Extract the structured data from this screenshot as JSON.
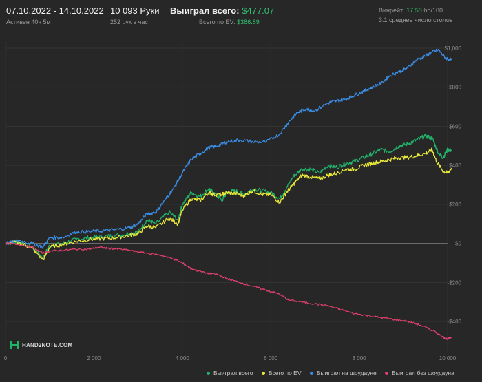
{
  "header": {
    "date_range": "07.10.2022 - 14.10.2022",
    "active_time": "Активен 40ч 5м",
    "hands": "10 093 Руки",
    "hands_per_hour": "252 рук в час",
    "won_total_label": "Выиграл всего:",
    "won_total_value": "$477.07",
    "ev_total_label": "Всего по EV:",
    "ev_total_value": "$386.89",
    "winrate_label": "Винрейт:",
    "winrate_value": "17.58",
    "winrate_unit": "бб/100",
    "avg_tables": "3.1 среднее число столов"
  },
  "logo": {
    "text": "HAND2NOTE.COM"
  },
  "colors": {
    "background": "#272727",
    "grid": "#3a3a3a",
    "zero_line": "#6a6a6a",
    "won_total": "#22b36a",
    "ev": "#e8e83a",
    "showdown": "#3b8ee6",
    "non_showdown": "#e0406e"
  },
  "chart_data": {
    "type": "line",
    "x_range": [
      0,
      10093
    ],
    "ylim": [
      -500,
      1050
    ],
    "x_ticks": [
      0,
      2000,
      4000,
      6000,
      8000,
      10000
    ],
    "x_tick_labels": [
      "0",
      "2 000",
      "4 000",
      "6 000",
      "8 000",
      "10 000"
    ],
    "y_ticks": [
      -400,
      -200,
      0,
      200,
      400,
      600,
      800,
      1000
    ],
    "y_tick_labels": [
      "-$400",
      "-$200",
      "$0",
      "$200",
      "$400",
      "$600",
      "$800",
      "$1,000"
    ],
    "grid": true,
    "legend_position": "bottom-right",
    "series": [
      {
        "name": "Выиграл всего",
        "color_key": "won_total",
        "points": [
          [
            0,
            0
          ],
          [
            300,
            10
          ],
          [
            600,
            -20
          ],
          [
            850,
            -70
          ],
          [
            1000,
            -10
          ],
          [
            1300,
            0
          ],
          [
            1600,
            20
          ],
          [
            1900,
            30
          ],
          [
            2200,
            35
          ],
          [
            2500,
            40
          ],
          [
            2800,
            50
          ],
          [
            3000,
            60
          ],
          [
            3200,
            120
          ],
          [
            3400,
            100
          ],
          [
            3700,
            160
          ],
          [
            3900,
            120
          ],
          [
            4000,
            200
          ],
          [
            4200,
            260
          ],
          [
            4400,
            240
          ],
          [
            4600,
            280
          ],
          [
            4700,
            260
          ],
          [
            4900,
            220
          ],
          [
            5000,
            260
          ],
          [
            5200,
            270
          ],
          [
            5400,
            250
          ],
          [
            5600,
            280
          ],
          [
            5800,
            270
          ],
          [
            6000,
            260
          ],
          [
            6200,
            230
          ],
          [
            6350,
            280
          ],
          [
            6500,
            340
          ],
          [
            6700,
            380
          ],
          [
            6900,
            380
          ],
          [
            7100,
            360
          ],
          [
            7300,
            400
          ],
          [
            7500,
            390
          ],
          [
            7700,
            410
          ],
          [
            7900,
            420
          ],
          [
            8100,
            440
          ],
          [
            8300,
            460
          ],
          [
            8500,
            480
          ],
          [
            8700,
            470
          ],
          [
            8900,
            500
          ],
          [
            9100,
            510
          ],
          [
            9300,
            530
          ],
          [
            9500,
            550
          ],
          [
            9650,
            540
          ],
          [
            9800,
            460
          ],
          [
            9900,
            440
          ],
          [
            10000,
            480
          ],
          [
            10093,
            477
          ]
        ]
      },
      {
        "name": "Всего по EV",
        "color_key": "ev",
        "points": [
          [
            0,
            0
          ],
          [
            300,
            5
          ],
          [
            600,
            -25
          ],
          [
            850,
            -85
          ],
          [
            1000,
            -20
          ],
          [
            1300,
            -5
          ],
          [
            1600,
            10
          ],
          [
            1900,
            20
          ],
          [
            2200,
            25
          ],
          [
            2500,
            30
          ],
          [
            2800,
            40
          ],
          [
            3000,
            50
          ],
          [
            3200,
            90
          ],
          [
            3400,
            80
          ],
          [
            3700,
            130
          ],
          [
            3900,
            100
          ],
          [
            4000,
            170
          ],
          [
            4200,
            230
          ],
          [
            4400,
            220
          ],
          [
            4600,
            260
          ],
          [
            4700,
            250
          ],
          [
            4900,
            250
          ],
          [
            5000,
            260
          ],
          [
            5200,
            255
          ],
          [
            5400,
            245
          ],
          [
            5600,
            270
          ],
          [
            5800,
            250
          ],
          [
            6000,
            250
          ],
          [
            6200,
            210
          ],
          [
            6350,
            260
          ],
          [
            6500,
            300
          ],
          [
            6700,
            350
          ],
          [
            6900,
            340
          ],
          [
            7100,
            330
          ],
          [
            7300,
            350
          ],
          [
            7500,
            360
          ],
          [
            7700,
            380
          ],
          [
            7900,
            380
          ],
          [
            8100,
            400
          ],
          [
            8300,
            410
          ],
          [
            8500,
            420
          ],
          [
            8700,
            430
          ],
          [
            8900,
            440
          ],
          [
            9100,
            440
          ],
          [
            9300,
            450
          ],
          [
            9500,
            460
          ],
          [
            9650,
            480
          ],
          [
            9750,
            420
          ],
          [
            9900,
            370
          ],
          [
            10000,
            360
          ],
          [
            10093,
            387
          ]
        ]
      },
      {
        "name": "Выиграл на шоудауне",
        "color_key": "showdown",
        "points": [
          [
            0,
            0
          ],
          [
            300,
            15
          ],
          [
            600,
            0
          ],
          [
            850,
            -20
          ],
          [
            1000,
            30
          ],
          [
            1300,
            30
          ],
          [
            1600,
            60
          ],
          [
            1900,
            60
          ],
          [
            2200,
            65
          ],
          [
            2500,
            70
          ],
          [
            2800,
            80
          ],
          [
            3000,
            100
          ],
          [
            3200,
            150
          ],
          [
            3400,
            160
          ],
          [
            3600,
            220
          ],
          [
            3800,
            280
          ],
          [
            4000,
            360
          ],
          [
            4200,
            430
          ],
          [
            4400,
            460
          ],
          [
            4600,
            490
          ],
          [
            4800,
            500
          ],
          [
            5000,
            520
          ],
          [
            5300,
            530
          ],
          [
            5600,
            520
          ],
          [
            5900,
            520
          ],
          [
            6200,
            560
          ],
          [
            6400,
            620
          ],
          [
            6600,
            670
          ],
          [
            6800,
            690
          ],
          [
            7000,
            680
          ],
          [
            7300,
            720
          ],
          [
            7500,
            730
          ],
          [
            7700,
            740
          ],
          [
            7900,
            760
          ],
          [
            8100,
            780
          ],
          [
            8300,
            800
          ],
          [
            8500,
            820
          ],
          [
            8700,
            860
          ],
          [
            8900,
            880
          ],
          [
            9100,
            900
          ],
          [
            9300,
            940
          ],
          [
            9500,
            960
          ],
          [
            9650,
            980
          ],
          [
            9800,
            990
          ],
          [
            9950,
            950
          ],
          [
            10093,
            940
          ]
        ]
      },
      {
        "name": "Выиграл без шоудауна",
        "color_key": "non_showdown",
        "points": [
          [
            0,
            0
          ],
          [
            300,
            -5
          ],
          [
            600,
            -20
          ],
          [
            850,
            -50
          ],
          [
            1000,
            -40
          ],
          [
            1300,
            -35
          ],
          [
            1600,
            -30
          ],
          [
            1900,
            -30
          ],
          [
            2100,
            -20
          ],
          [
            2300,
            -25
          ],
          [
            2600,
            -30
          ],
          [
            2900,
            -40
          ],
          [
            3200,
            -50
          ],
          [
            3500,
            -60
          ],
          [
            3800,
            -80
          ],
          [
            4000,
            -100
          ],
          [
            4200,
            -130
          ],
          [
            4500,
            -150
          ],
          [
            4800,
            -160
          ],
          [
            5000,
            -180
          ],
          [
            5300,
            -200
          ],
          [
            5600,
            -220
          ],
          [
            5900,
            -240
          ],
          [
            6200,
            -260
          ],
          [
            6400,
            -290
          ],
          [
            6700,
            -300
          ],
          [
            7000,
            -310
          ],
          [
            7300,
            -320
          ],
          [
            7600,
            -340
          ],
          [
            7900,
            -360
          ],
          [
            8200,
            -370
          ],
          [
            8500,
            -380
          ],
          [
            8800,
            -390
          ],
          [
            9100,
            -400
          ],
          [
            9400,
            -420
          ],
          [
            9700,
            -450
          ],
          [
            9900,
            -480
          ],
          [
            10000,
            -490
          ],
          [
            10093,
            -480
          ]
        ]
      }
    ]
  }
}
